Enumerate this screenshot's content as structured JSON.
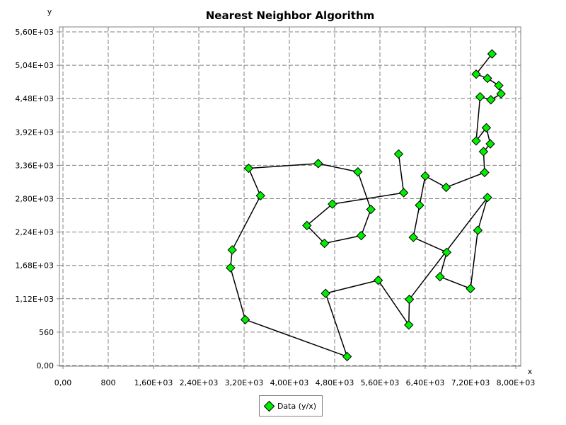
{
  "chart_data": {
    "type": "line",
    "title": "Nearest Neighbor Algorithm",
    "xlabel": "x",
    "ylabel": "y",
    "xlim": [
      0,
      8000
    ],
    "ylim": [
      0,
      5600
    ],
    "grid": true,
    "legend_position": "bottom",
    "x_ticks": [
      {
        "value": 0,
        "label": "0,00"
      },
      {
        "value": 800,
        "label": "800"
      },
      {
        "value": 1600,
        "label": "1,60E+03"
      },
      {
        "value": 2400,
        "label": "2,40E+03"
      },
      {
        "value": 3200,
        "label": "3,20E+03"
      },
      {
        "value": 4000,
        "label": "4,00E+03"
      },
      {
        "value": 4800,
        "label": "4,80E+03"
      },
      {
        "value": 5600,
        "label": "5,60E+03"
      },
      {
        "value": 6400,
        "label": "6,40E+03"
      },
      {
        "value": 7200,
        "label": "7,20E+03"
      },
      {
        "value": 8000,
        "label": "8,00E+03"
      }
    ],
    "y_ticks": [
      {
        "value": 0,
        "label": "0,00"
      },
      {
        "value": 560,
        "label": "560"
      },
      {
        "value": 1120,
        "label": "1,12E+03"
      },
      {
        "value": 1680,
        "label": "1,68E+03"
      },
      {
        "value": 2240,
        "label": "2,24E+03"
      },
      {
        "value": 2800,
        "label": "2,80E+03"
      },
      {
        "value": 3360,
        "label": "3,36E+03"
      },
      {
        "value": 3920,
        "label": "3,92E+03"
      },
      {
        "value": 4480,
        "label": "4,48E+03"
      },
      {
        "value": 5040,
        "label": "5,04E+03"
      },
      {
        "value": 5600,
        "label": "5,60E+03"
      }
    ],
    "series": [
      {
        "name": "Data (y/x)",
        "color": "#00ee00",
        "line_color": "#000000",
        "x": [
          7580,
          7300,
          7500,
          7700,
          7740,
          7560,
          7370,
          7300,
          7480,
          7550,
          7430,
          7450,
          6770,
          6400,
          6300,
          6190,
          6780,
          6660,
          7200,
          7330,
          7500,
          6120,
          6110,
          5570,
          4640,
          5020,
          3220,
          2960,
          2990,
          3490,
          3280,
          4510,
          5210,
          5440,
          5270,
          4620,
          4310,
          4760,
          6020,
          5930
        ],
        "y": [
          5230,
          4890,
          4820,
          4700,
          4560,
          4460,
          4510,
          3770,
          3990,
          3720,
          3590,
          3240,
          2990,
          3180,
          2690,
          2150,
          1900,
          1490,
          1290,
          2270,
          2820,
          1110,
          680,
          1430,
          1210,
          150,
          770,
          1640,
          1940,
          2850,
          3310,
          3390,
          3250,
          2620,
          2180,
          2050,
          2350,
          2710,
          2900,
          3550
        ]
      }
    ]
  },
  "legend": {
    "label": "Data (y/x)"
  },
  "colors": {
    "marker_fill": "#00ee00",
    "grid": "#808080",
    "line": "#000000"
  }
}
